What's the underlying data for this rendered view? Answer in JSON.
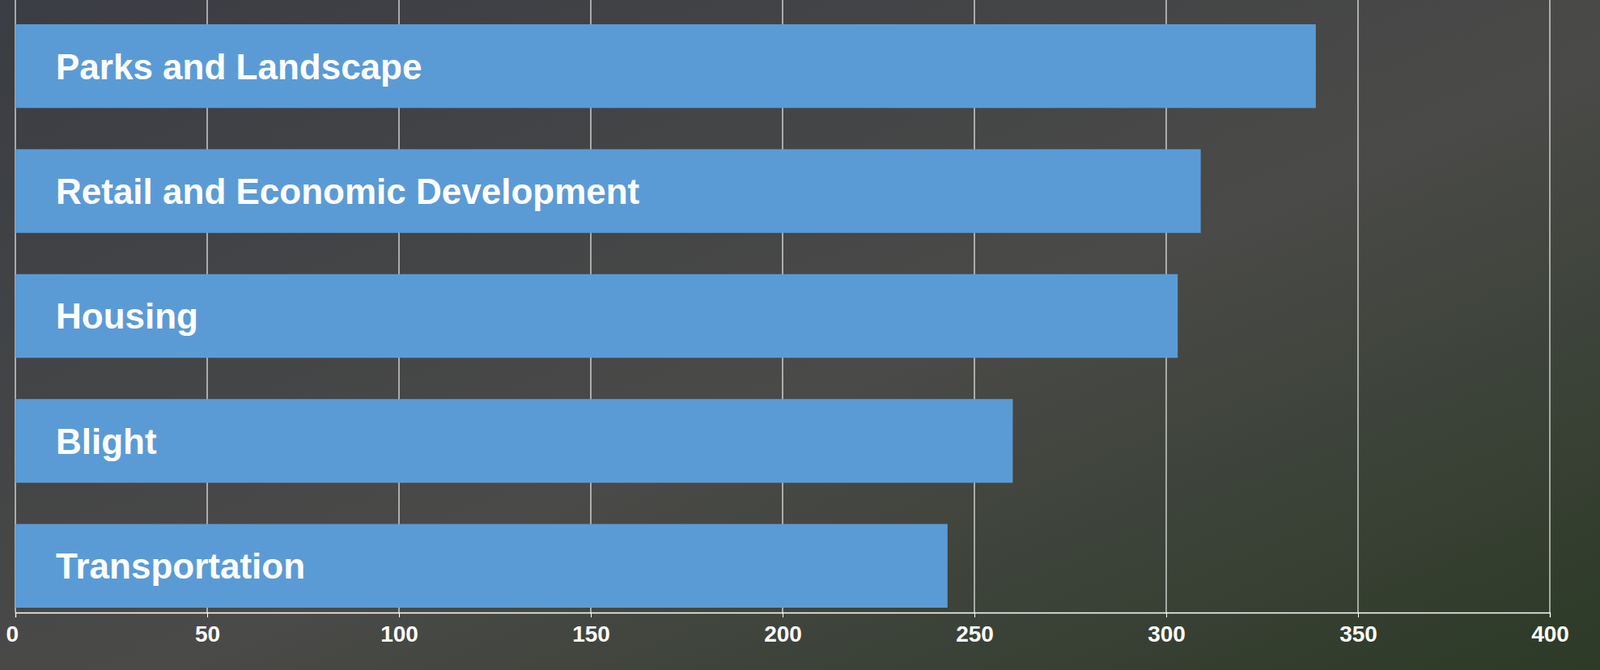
{
  "chart_data": {
    "type": "bar",
    "orientation": "horizontal",
    "categories": [
      "Parks and Landscape",
      "Retail and Economic Development",
      "Housing",
      "Blight",
      "Transportation"
    ],
    "values": [
      339,
      309,
      303,
      260,
      243
    ],
    "color": "#5b9bd5",
    "xlim": [
      0,
      400
    ],
    "xticks": [
      0,
      50,
      100,
      150,
      200,
      250,
      300,
      350,
      400
    ],
    "grid": true
  }
}
